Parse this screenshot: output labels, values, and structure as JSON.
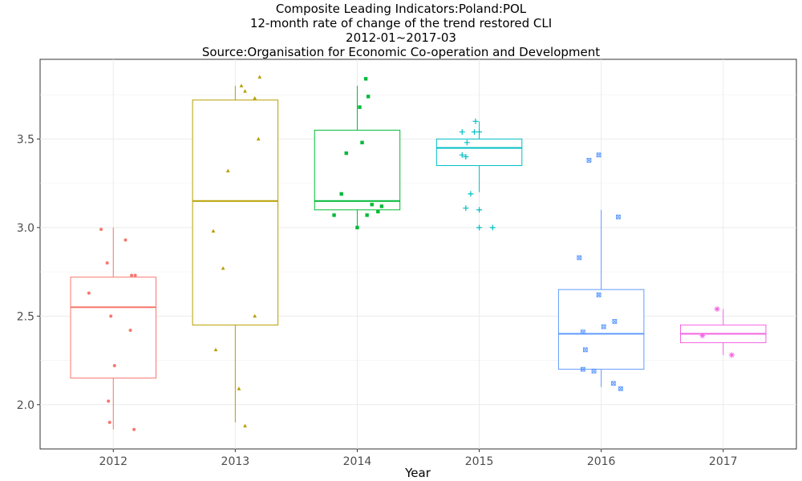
{
  "chart_data": {
    "type": "box",
    "title": "Composite Leading Indicators:Poland:POL",
    "subtitle_lines": [
      "12-month rate of change of the trend restored CLI",
      "2012-01~2017-03",
      "Source:Organisation for Economic Co-operation and Development"
    ],
    "xlabel": "Year",
    "ylabel": "",
    "ylim": [
      1.75,
      3.95
    ],
    "y_ticks": [
      2.0,
      2.5,
      3.0,
      3.5
    ],
    "grid": true,
    "categories": [
      "2012",
      "2013",
      "2014",
      "2015",
      "2016",
      "2017"
    ],
    "groups": [
      {
        "name": "2012",
        "color": "#F8766D",
        "marker": "circle",
        "q1": 2.15,
        "median": 2.55,
        "q3": 2.72,
        "whisker_low": 1.86,
        "whisker_high": 3.0,
        "points": [
          [
            -0.1,
            2.99
          ],
          [
            0.1,
            2.93
          ],
          [
            -0.05,
            2.8
          ],
          [
            0.15,
            2.73
          ],
          [
            0.18,
            2.73
          ],
          [
            -0.2,
            2.63
          ],
          [
            -0.02,
            2.5
          ],
          [
            0.14,
            2.42
          ],
          [
            0.01,
            2.22
          ],
          [
            -0.04,
            2.02
          ],
          [
            -0.03,
            1.9
          ],
          [
            0.17,
            1.86
          ]
        ]
      },
      {
        "name": "2013",
        "color": "#B79F00",
        "marker": "triangle",
        "q1": 2.45,
        "median": 3.15,
        "q3": 3.72,
        "whisker_low": 1.9,
        "whisker_high": 3.8,
        "points": [
          [
            0.2,
            3.85
          ],
          [
            0.05,
            3.8
          ],
          [
            0.08,
            3.77
          ],
          [
            0.16,
            3.73
          ],
          [
            0.19,
            3.5
          ],
          [
            -0.06,
            3.32
          ],
          [
            -0.18,
            2.98
          ],
          [
            -0.1,
            2.77
          ],
          [
            0.16,
            2.5
          ],
          [
            -0.16,
            2.31
          ],
          [
            0.03,
            2.09
          ],
          [
            0.08,
            1.88
          ]
        ]
      },
      {
        "name": "2014",
        "color": "#00BA38",
        "marker": "square",
        "q1": 3.1,
        "median": 3.15,
        "q3": 3.55,
        "whisker_low": 3.0,
        "whisker_high": 3.8,
        "points": [
          [
            0.07,
            3.84
          ],
          [
            0.09,
            3.74
          ],
          [
            0.02,
            3.68
          ],
          [
            0.04,
            3.48
          ],
          [
            -0.09,
            3.42
          ],
          [
            -0.13,
            3.19
          ],
          [
            0.12,
            3.13
          ],
          [
            0.2,
            3.12
          ],
          [
            0.17,
            3.09
          ],
          [
            -0.19,
            3.07
          ],
          [
            0.08,
            3.07
          ],
          [
            0.0,
            3.0
          ]
        ]
      },
      {
        "name": "2015",
        "color": "#00BFC4",
        "marker": "plus",
        "q1": 3.35,
        "median": 3.45,
        "q3": 3.5,
        "whisker_low": 3.2,
        "whisker_high": 3.6,
        "points": [
          [
            -0.03,
            3.6
          ],
          [
            -0.14,
            3.54
          ],
          [
            -0.04,
            3.54
          ],
          [
            0.0,
            3.54
          ],
          [
            -0.1,
            3.48
          ],
          [
            -0.14,
            3.41
          ],
          [
            -0.11,
            3.4
          ],
          [
            -0.07,
            3.19
          ],
          [
            -0.11,
            3.11
          ],
          [
            0.0,
            3.1
          ],
          [
            0.11,
            3.0
          ],
          [
            0.0,
            3.0
          ]
        ]
      },
      {
        "name": "2016",
        "color": "#619CFF",
        "marker": "square-x",
        "q1": 2.2,
        "median": 2.4,
        "q3": 2.65,
        "whisker_low": 2.1,
        "whisker_high": 3.1,
        "points": [
          [
            -0.02,
            3.41
          ],
          [
            -0.1,
            3.38
          ],
          [
            0.14,
            3.06
          ],
          [
            -0.18,
            2.83
          ],
          [
            -0.02,
            2.62
          ],
          [
            0.11,
            2.47
          ],
          [
            0.02,
            2.44
          ],
          [
            -0.15,
            2.41
          ],
          [
            -0.13,
            2.31
          ],
          [
            -0.15,
            2.2
          ],
          [
            -0.06,
            2.19
          ],
          [
            0.1,
            2.12
          ],
          [
            0.16,
            2.09
          ]
        ]
      },
      {
        "name": "2017",
        "color": "#F564E3",
        "marker": "asterisk",
        "q1": 2.35,
        "median": 2.4,
        "q3": 2.45,
        "whisker_low": 2.28,
        "whisker_high": 2.54,
        "points": [
          [
            -0.05,
            2.54
          ],
          [
            -0.17,
            2.39
          ],
          [
            0.07,
            2.28
          ]
        ]
      }
    ]
  }
}
